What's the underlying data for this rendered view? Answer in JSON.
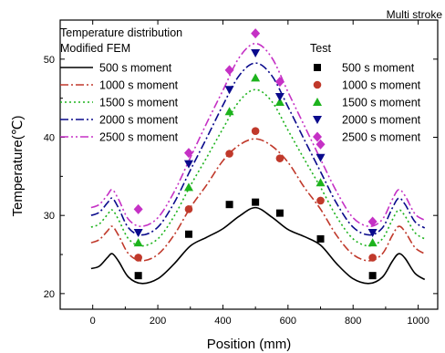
{
  "corner_label": "Multi stroke",
  "legend": {
    "fem_title_line1": "Temperature distribution",
    "fem_title_line2": "Modified FEM",
    "test_title": "Test"
  },
  "chart_data": {
    "type": "line",
    "xlabel": "Position (mm)",
    "ylabel": "Temperature(℃)",
    "xlim": [
      -100,
      1060
    ],
    "ylim": [
      18,
      55
    ],
    "xticks": [
      0,
      200,
      400,
      600,
      800,
      1000
    ],
    "yticks": [
      20,
      30,
      40,
      50
    ],
    "grid": false,
    "series": [
      {
        "name": "500 s moment",
        "color": "#000000",
        "line_style": "solid",
        "marker": "square",
        "fem_curve": [
          [
            -5,
            23.2
          ],
          [
            20,
            23.5
          ],
          [
            45,
            24.6
          ],
          [
            60,
            25.1
          ],
          [
            80,
            24.1
          ],
          [
            110,
            22.1
          ],
          [
            150,
            21.3
          ],
          [
            200,
            21.9
          ],
          [
            250,
            23.8
          ],
          [
            300,
            26.1
          ],
          [
            350,
            27.2
          ],
          [
            400,
            28.3
          ],
          [
            450,
            29.9
          ],
          [
            500,
            31.0
          ],
          [
            550,
            29.8
          ],
          [
            600,
            28.2
          ],
          [
            650,
            27.3
          ],
          [
            700,
            26.2
          ],
          [
            750,
            23.8
          ],
          [
            800,
            21.9
          ],
          [
            850,
            21.3
          ],
          [
            890,
            22.1
          ],
          [
            920,
            24.1
          ],
          [
            940,
            25.1
          ],
          [
            960,
            24.5
          ],
          [
            990,
            22.6
          ],
          [
            1020,
            21.8
          ]
        ],
        "test_points": [
          [
            140,
            22.3
          ],
          [
            295,
            27.6
          ],
          [
            420,
            31.4
          ],
          [
            500,
            31.7
          ],
          [
            575,
            30.3
          ],
          [
            700,
            27.0
          ],
          [
            860,
            22.3
          ]
        ]
      },
      {
        "name": "1000 s moment",
        "color": "#c0392b",
        "line_style": "dash-dot",
        "marker": "circle",
        "fem_curve": [
          [
            -5,
            26.5
          ],
          [
            20,
            26.9
          ],
          [
            45,
            28.0
          ],
          [
            60,
            28.6
          ],
          [
            80,
            27.4
          ],
          [
            110,
            25.1
          ],
          [
            150,
            24.2
          ],
          [
            200,
            25.0
          ],
          [
            250,
            27.5
          ],
          [
            300,
            31.0
          ],
          [
            350,
            33.9
          ],
          [
            400,
            37.0
          ],
          [
            450,
            39.0
          ],
          [
            500,
            39.8
          ],
          [
            550,
            38.9
          ],
          [
            600,
            36.8
          ],
          [
            650,
            33.6
          ],
          [
            700,
            30.8
          ],
          [
            750,
            27.4
          ],
          [
            800,
            25.0
          ],
          [
            850,
            24.2
          ],
          [
            890,
            25.1
          ],
          [
            920,
            27.4
          ],
          [
            940,
            28.6
          ],
          [
            960,
            27.9
          ],
          [
            990,
            25.9
          ],
          [
            1020,
            25.1
          ]
        ],
        "test_points": [
          [
            140,
            24.6
          ],
          [
            295,
            30.8
          ],
          [
            420,
            37.9
          ],
          [
            500,
            40.8
          ],
          [
            575,
            37.3
          ],
          [
            700,
            31.9
          ],
          [
            860,
            24.6
          ]
        ]
      },
      {
        "name": "1500 s moment",
        "color": "#1db31d",
        "line_style": "dotted",
        "marker": "triangle-up",
        "fem_curve": [
          [
            -5,
            28.5
          ],
          [
            20,
            28.9
          ],
          [
            45,
            30.1
          ],
          [
            60,
            30.7
          ],
          [
            80,
            29.4
          ],
          [
            110,
            27.0
          ],
          [
            150,
            26.1
          ],
          [
            200,
            27.0
          ],
          [
            250,
            29.9
          ],
          [
            300,
            33.8
          ],
          [
            350,
            37.4
          ],
          [
            400,
            41.1
          ],
          [
            450,
            44.6
          ],
          [
            500,
            46.1
          ],
          [
            550,
            44.6
          ],
          [
            600,
            40.9
          ],
          [
            650,
            37.2
          ],
          [
            700,
            33.6
          ],
          [
            750,
            29.8
          ],
          [
            800,
            27.0
          ],
          [
            850,
            26.1
          ],
          [
            890,
            27.0
          ],
          [
            920,
            29.4
          ],
          [
            940,
            30.7
          ],
          [
            960,
            29.9
          ],
          [
            990,
            27.8
          ],
          [
            1020,
            27.0
          ]
        ],
        "test_points": [
          [
            140,
            26.5
          ],
          [
            295,
            33.6
          ],
          [
            420,
            43.3
          ],
          [
            500,
            47.6
          ],
          [
            575,
            44.5
          ],
          [
            700,
            34.2
          ],
          [
            860,
            26.5
          ]
        ]
      },
      {
        "name": "2000 s moment",
        "color": "#0a0a8c",
        "line_style": "dash-dot",
        "marker": "triangle-down",
        "fem_curve": [
          [
            -5,
            30.0
          ],
          [
            20,
            30.4
          ],
          [
            45,
            31.6
          ],
          [
            60,
            32.2
          ],
          [
            80,
            30.9
          ],
          [
            110,
            28.4
          ],
          [
            150,
            27.5
          ],
          [
            200,
            28.5
          ],
          [
            250,
            31.6
          ],
          [
            300,
            35.8
          ],
          [
            350,
            39.9
          ],
          [
            400,
            44.1
          ],
          [
            450,
            47.9
          ],
          [
            500,
            49.5
          ],
          [
            550,
            47.9
          ],
          [
            600,
            43.9
          ],
          [
            650,
            39.7
          ],
          [
            700,
            35.6
          ],
          [
            750,
            31.5
          ],
          [
            800,
            28.5
          ],
          [
            850,
            27.5
          ],
          [
            890,
            28.4
          ],
          [
            920,
            30.9
          ],
          [
            940,
            32.2
          ],
          [
            960,
            31.4
          ],
          [
            990,
            29.2
          ],
          [
            1020,
            28.4
          ]
        ],
        "test_points": [
          [
            140,
            27.8
          ],
          [
            295,
            36.6
          ],
          [
            420,
            46.1
          ],
          [
            500,
            50.8
          ],
          [
            575,
            45.2
          ],
          [
            700,
            37.4
          ],
          [
            860,
            27.8
          ]
        ]
      },
      {
        "name": "2500 s moment",
        "color": "#c531c5",
        "line_style": "dash-dot-dot",
        "marker": "diamond",
        "fem_curve": [
          [
            -5,
            31.0
          ],
          [
            20,
            31.4
          ],
          [
            45,
            32.6
          ],
          [
            60,
            33.3
          ],
          [
            80,
            32.0
          ],
          [
            110,
            29.5
          ],
          [
            150,
            28.6
          ],
          [
            200,
            29.7
          ],
          [
            250,
            33.0
          ],
          [
            300,
            37.4
          ],
          [
            350,
            41.8
          ],
          [
            400,
            46.0
          ],
          [
            450,
            50.2
          ],
          [
            500,
            52.0
          ],
          [
            550,
            50.2
          ],
          [
            600,
            45.8
          ],
          [
            650,
            41.5
          ],
          [
            700,
            37.2
          ],
          [
            750,
            33.0
          ],
          [
            800,
            29.7
          ],
          [
            850,
            28.6
          ],
          [
            890,
            29.5
          ],
          [
            920,
            32.0
          ],
          [
            940,
            33.3
          ],
          [
            960,
            32.5
          ],
          [
            990,
            30.2
          ],
          [
            1020,
            29.4
          ]
        ],
        "test_points": [
          [
            140,
            30.8
          ],
          [
            295,
            38.0
          ],
          [
            420,
            48.6
          ],
          [
            500,
            53.3
          ],
          [
            575,
            47.1
          ],
          [
            700,
            39.1
          ],
          [
            860,
            29.2
          ]
        ]
      }
    ]
  }
}
